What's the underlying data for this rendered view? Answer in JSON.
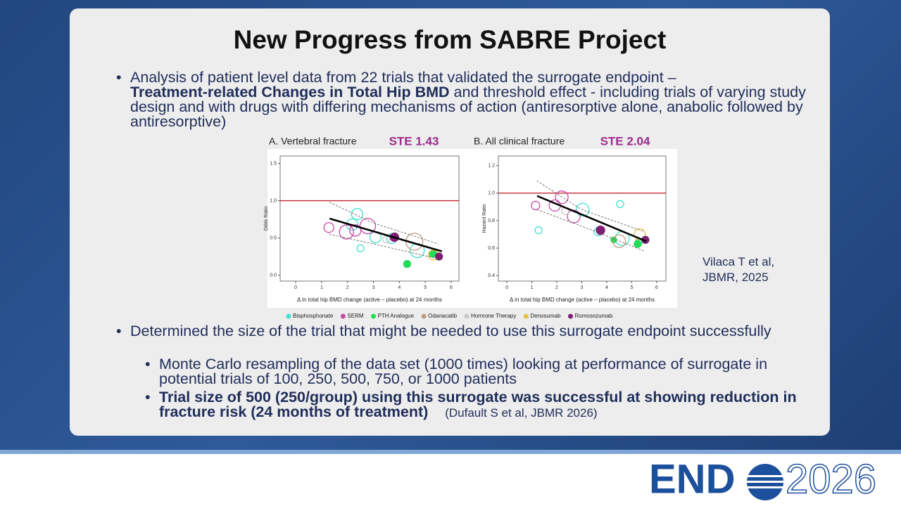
{
  "title": "New Progress from SABRE Project",
  "bullet1": {
    "before": "Analysis of patient level data from 22 trials that validated the surrogate endpoint –",
    "bold": "Treatment-related Changes in Total Hip BMD",
    "after": " and threshold effect -  including trials of varying study design and with drugs with differing mechanisms of action (antiresorptive alone, anabolic followed by antiresorptive)"
  },
  "citation1": "Vilaca T et al, JBMR, 2025",
  "bullet2": "Determined the size of the trial that might be needed to use this surrogate endpoint successfully",
  "sub1": "Monte Carlo resampling of the data set (1000 times) looking at performance of surrogate in potential trials of 100, 250, 500, 750, or 1000 patients",
  "sub2": {
    "bold": "Trial size of 500 (250/group) using this surrogate was successful at showing reduction in fracture risk (24 months of treatment)",
    "citation": "(Dufault S et al, JBMR 2026)"
  },
  "logo": {
    "left": "END",
    "right": "2026"
  },
  "legend": [
    {
      "name": "Bisphosphonate",
      "color": "#3fe0d0",
      "filled": false
    },
    {
      "name": "SERM",
      "color": "#c84aa8",
      "filled": false
    },
    {
      "name": "PTH Analogue",
      "color": "#22dd55",
      "filled": true
    },
    {
      "name": "Odanacatib",
      "color": "#c49a7c",
      "filled": false
    },
    {
      "name": "Hormone Therapy",
      "color": "#c8c8c8",
      "filled": false
    },
    {
      "name": "Denosumab",
      "color": "#e6c040",
      "filled": false
    },
    {
      "name": "Romosozumab",
      "color": "#7d1f72",
      "filled": true
    }
  ],
  "chart_data": [
    {
      "type": "scatter",
      "title": "A.  Vertebral fracture",
      "subtitle": "STE 1.43",
      "x_label": "Δ in total hip BMD change (active – placebo) at 24 months",
      "y_label": "Odds Ratio",
      "xlim": [
        -0.6,
        6.3
      ],
      "ylim": [
        -0.08,
        1.6
      ],
      "xticks": [
        0,
        1,
        2,
        3,
        4,
        5,
        6
      ],
      "yticks": [
        {
          "value": 0,
          "label": "0.0"
        },
        0.5,
        {
          "value": 1,
          "label": "1.0"
        },
        1.5
      ],
      "hline": 1.0,
      "fit": {
        "x": [
          1.31,
          5.64
        ],
        "y": [
          0.76,
          0.32
        ]
      },
      "ci_upper": {
        "x": [
          1.3,
          3,
          5.5
        ],
        "y": [
          0.98,
          0.7,
          0.42
        ]
      },
      "ci_lower": {
        "x": [
          1.3,
          3,
          5.5
        ],
        "y": [
          0.55,
          0.42,
          0.22
        ]
      },
      "series": [
        {
          "x": [
            2.37,
            2.18,
            2.5,
            3.08,
            3.7,
            4.69
          ],
          "values": [
            0.82,
            0.68,
            0.36,
            0.51,
            0.49,
            0.33
          ],
          "sizes": [
            4,
            4,
            2.5,
            4,
            3.5,
            5
          ]
        },
        {
          "x": [
            1.28,
            1.96,
            2.3,
            2.78
          ],
          "values": [
            0.64,
            0.58,
            0.6,
            0.66
          ],
          "sizes": [
            3.5,
            5,
            4,
            5.5
          ]
        },
        {
          "x": [
            4.3,
            5.29
          ],
          "values": [
            0.15,
            0.29
          ],
          "sizes": [
            2.5,
            2.5
          ]
        },
        {
          "x": [
            4.58
          ],
          "values": [
            0.45
          ],
          "sizes": [
            6
          ]
        },
        {
          "x": [
            3.5
          ],
          "values": [
            0.48
          ],
          "sizes": [
            2.5
          ]
        },
        {
          "x": [
            5.31
          ],
          "values": [
            0.27
          ],
          "sizes": [
            3.5
          ]
        },
        {
          "x": [
            3.81,
            5.53
          ],
          "values": [
            0.51,
            0.25
          ],
          "sizes": [
            3,
            2.5
          ]
        }
      ]
    },
    {
      "type": "scatter",
      "title": "B.  All clinical fracture",
      "subtitle": "STE 2.04",
      "x_label": "Δ in total hip BMD change (active – placebo) at 24 months",
      "y_label": "Hazard Ratio",
      "xlim": [
        -0.34,
        6.37
      ],
      "ylim": [
        0.36,
        1.27
      ],
      "xticks": [
        0,
        1,
        2,
        3,
        4,
        5,
        6
      ],
      "yticks": [
        0.4,
        0.6,
        0.8,
        {
          "value": 1,
          "label": "1.0"
        },
        1.2
      ],
      "hline": 1.0,
      "fit": {
        "x": [
          1.21,
          5.58
        ],
        "y": [
          0.98,
          0.65
        ]
      },
      "ci_upper": {
        "x": [
          1.2,
          3,
          5.5
        ],
        "y": [
          1.09,
          0.88,
          0.72
        ]
      },
      "ci_lower": {
        "x": [
          1.2,
          3,
          5.5
        ],
        "y": [
          0.88,
          0.76,
          0.58
        ]
      },
      "series": [
        {
          "x": [
            1.27,
            3.04,
            4.54,
            3.66,
            4.62,
            5.27
          ],
          "values": [
            0.73,
            0.88,
            0.92,
            0.72,
            0.67,
            0.64
          ],
          "sizes": [
            2.5,
            4.5,
            2.5,
            3,
            5,
            2.5
          ]
        },
        {
          "x": [
            1.15,
            1.92,
            2.2,
            2.68
          ],
          "values": [
            0.91,
            0.91,
            0.97,
            0.83
          ],
          "sizes": [
            3,
            4,
            4.5,
            4.5
          ]
        },
        {
          "x": [
            4.28,
            5.24
          ],
          "values": [
            0.66,
            0.63
          ],
          "sizes": [
            2,
            2.5
          ]
        },
        {
          "x": [
            4.5
          ],
          "values": [
            0.65
          ],
          "sizes": [
            4.5
          ]
        },
        {
          "x": [
            2.34
          ],
          "values": [
            0.87
          ],
          "sizes": [
            2.5
          ]
        },
        {
          "x": [
            5.32
          ],
          "values": [
            0.7
          ],
          "sizes": [
            4
          ]
        },
        {
          "x": [
            3.75,
            5.55
          ],
          "values": [
            0.73,
            0.66
          ],
          "sizes": [
            3,
            2.5
          ]
        }
      ]
    }
  ]
}
